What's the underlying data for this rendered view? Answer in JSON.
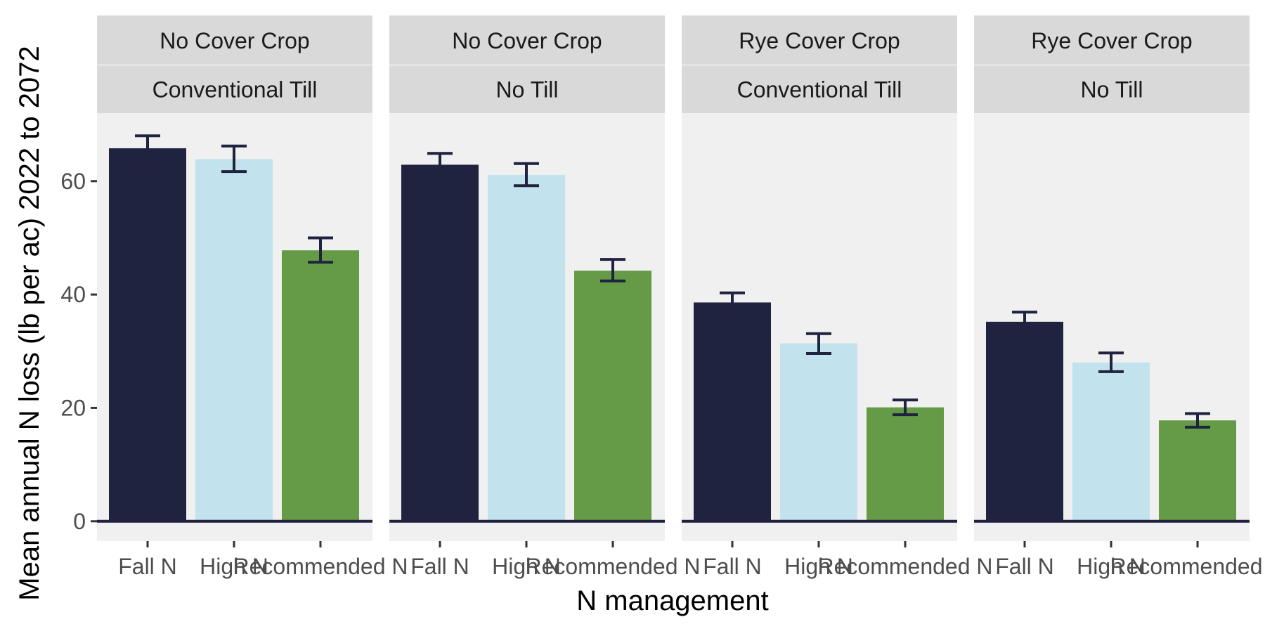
{
  "chart_data": {
    "type": "bar",
    "xlabel": "N management",
    "ylabel": "Mean annual N loss (lb per ac) 2022 to 2072",
    "ylim": [
      -3.5,
      72
    ],
    "yticks": [
      0,
      20,
      40,
      60
    ],
    "grid": false,
    "legend": "none",
    "colors": {
      "Fall N": "#20233f",
      "High N": "#c2e3ee",
      "Recommended N": "#659a47"
    },
    "error_bar_color": "#20233f",
    "categories": [
      "Fall N",
      "High N",
      "Recommended N"
    ],
    "panels": [
      {
        "strip_top": "No Cover Crop",
        "strip_bottom": "Conventional Till",
        "values": [
          65.8,
          63.9,
          47.8
        ],
        "error_low": [
          63.5,
          61.7,
          45.7
        ],
        "error_high": [
          68.0,
          66.2,
          50.0
        ]
      },
      {
        "strip_top": "No Cover Crop",
        "strip_bottom": "No Till",
        "values": [
          62.9,
          61.1,
          44.2
        ],
        "error_low": [
          60.9,
          59.2,
          42.4
        ],
        "error_high": [
          64.9,
          63.1,
          46.2
        ]
      },
      {
        "strip_top": "Rye Cover Crop",
        "strip_bottom": "Conventional Till",
        "values": [
          38.6,
          31.4,
          20.1
        ],
        "error_low": [
          37.0,
          29.6,
          18.8
        ],
        "error_high": [
          40.3,
          33.1,
          21.4
        ]
      },
      {
        "strip_top": "Rye Cover Crop",
        "strip_bottom": "No Till",
        "values": [
          35.2,
          28.0,
          17.8
        ],
        "error_low": [
          33.5,
          26.4,
          16.6
        ],
        "error_high": [
          36.9,
          29.7,
          19.0
        ]
      }
    ]
  }
}
